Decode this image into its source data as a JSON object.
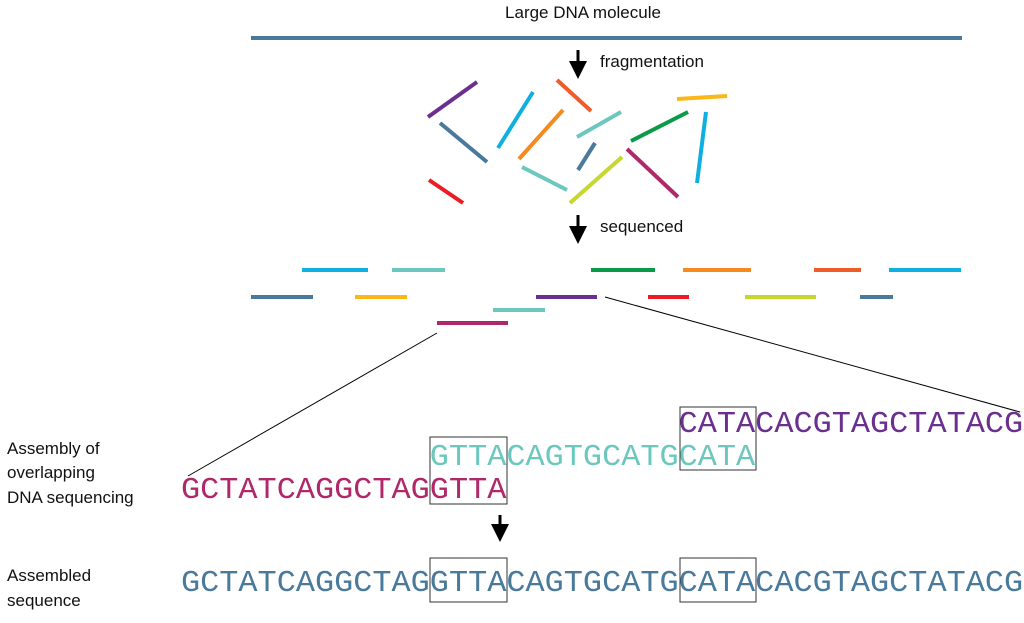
{
  "title": "Large DNA molecule",
  "steps": {
    "fragmentation": "fragmentation",
    "sequenced": "sequenced"
  },
  "labels": {
    "assembly": [
      "Assembly of",
      "overlapping",
      "DNA sequencing"
    ],
    "assembled": [
      "Assembled",
      "sequence"
    ]
  },
  "colors": {
    "molecule": "#4a7a9b",
    "purple": "#6a2f8f",
    "teal": "#6cc8be",
    "magenta": "#b0286a",
    "cyan": "#0fb0df",
    "orange": "#f58a1f",
    "orangered": "#f15a29",
    "green": "#0a9a48",
    "yellow": "#fbb617",
    "yellowgreen": "#c6d72e",
    "red": "#ed1c24"
  },
  "reads": {
    "magenta": [
      "GCTATCAGGCTAG",
      "GTTA"
    ],
    "teal": [
      "GTTA",
      "CAGTGCATG",
      "CATA"
    ],
    "purple": [
      "CATA",
      "CACGTAGCTATACG"
    ]
  },
  "assembled": [
    "GCTATCAGGCTAG",
    "GTTA",
    "CAGTGCATG",
    "CATA",
    "CACGTAGCTATACG"
  ]
}
